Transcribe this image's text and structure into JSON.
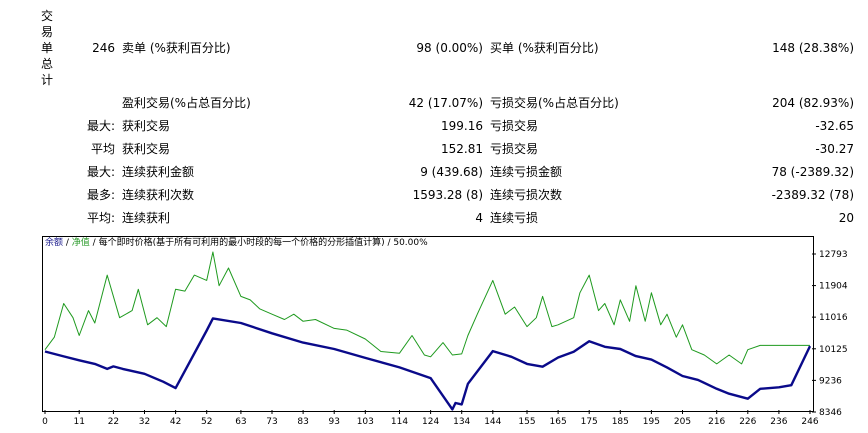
{
  "side_label": [
    "交",
    "易",
    "单",
    "总",
    "计"
  ],
  "rows": [
    {
      "prefix": "246",
      "label1": "卖单 (%获利百分比)",
      "value1": "98 (0.00%)",
      "label2": "买单 (%获利百分比)",
      "value2": "148 (28.38%)"
    },
    {
      "prefix": "",
      "label1": "盈利交易(%占总百分比)",
      "value1": "42 (17.07%)",
      "label2": "亏损交易(%占总百分比)",
      "value2": "204 (82.93%)"
    },
    {
      "prefix": "最大:",
      "label1": "获利交易",
      "value1": "199.16",
      "label2": "亏损交易",
      "value2": "-32.65"
    },
    {
      "prefix": "平均",
      "label1": "获利交易",
      "value1": "152.81",
      "label2": "亏损交易",
      "value2": "-30.27"
    },
    {
      "prefix": "最大:",
      "label1": "连续获利金额",
      "value1": "9 (439.68)",
      "label2": "连续亏损金额",
      "value2": "78 (-2389.32)"
    },
    {
      "prefix": "最多:",
      "label1": "连续获利次数",
      "value1": "1593.28 (8)",
      "label2": "连续亏损次数",
      "value2": "-2389.32 (78)"
    },
    {
      "prefix": "平均:",
      "label1": "连续获利",
      "value1": "4",
      "label2": "连续亏损",
      "value2": "20"
    }
  ],
  "legend": {
    "balance": "余额",
    "sep1": " / ",
    "equity": "净值",
    "sep2": " / ",
    "rest": "每个即时价格(基于所有可利用的最小时段的每一个价格的分形插值计算) / 50.00%"
  },
  "colors": {
    "balance": "#0a0a8a",
    "equity": "#1f9a1f"
  },
  "chart_data": {
    "type": "line",
    "ylim": [
      8346,
      13300
    ],
    "y_ticks": [
      12793,
      11904,
      11016,
      10125,
      9236,
      8346
    ],
    "x_ticks": [
      0,
      11,
      22,
      32,
      42,
      52,
      63,
      73,
      83,
      93,
      103,
      114,
      124,
      134,
      144,
      155,
      165,
      175,
      185,
      195,
      205,
      216,
      226,
      236,
      246
    ],
    "series": [
      {
        "name": "余额",
        "x": [
          0,
          6,
          11,
          16,
          20,
          22,
          25,
          32,
          38,
          42,
          52,
          54,
          63,
          73,
          83,
          93,
          103,
          114,
          124,
          131,
          132,
          134,
          136,
          144,
          150,
          155,
          160,
          165,
          170,
          175,
          180,
          185,
          190,
          195,
          200,
          205,
          210,
          216,
          220,
          226,
          230,
          236,
          240,
          246
        ],
        "y": [
          10050,
          9910,
          9800,
          9700,
          9560,
          9630,
          9560,
          9420,
          9200,
          9020,
          10640,
          10980,
          10850,
          10560,
          10300,
          10120,
          9870,
          9600,
          9300,
          8420,
          8600,
          8560,
          9140,
          10060,
          9900,
          9700,
          9620,
          9880,
          10040,
          10340,
          10180,
          10120,
          9920,
          9820,
          9600,
          9360,
          9250,
          9000,
          8860,
          8720,
          9000,
          9040,
          9100,
          10200
        ]
      },
      {
        "name": "净值",
        "x": [
          0,
          3,
          6,
          9,
          11,
          14,
          16,
          20,
          24,
          28,
          30,
          33,
          36,
          39,
          42,
          45,
          48,
          52,
          54,
          56,
          59,
          63,
          66,
          69,
          73,
          77,
          80,
          83,
          87,
          93,
          97,
          103,
          108,
          114,
          118,
          122,
          124,
          128,
          131,
          134,
          136,
          139,
          144,
          148,
          151,
          155,
          158,
          160,
          163,
          165,
          170,
          172,
          175,
          178,
          180,
          183,
          185,
          188,
          190,
          193,
          195,
          198,
          200,
          203,
          205,
          208,
          212,
          216,
          220,
          224,
          226,
          230,
          236,
          241,
          246
        ],
        "y": [
          10100,
          10450,
          11400,
          11000,
          10500,
          11200,
          10850,
          12200,
          11000,
          11200,
          11800,
          10800,
          11000,
          10750,
          11800,
          11750,
          12200,
          12050,
          12850,
          11900,
          12400,
          11600,
          11500,
          11250,
          11100,
          10950,
          11100,
          10900,
          10950,
          10700,
          10650,
          10400,
          10050,
          10000,
          10500,
          9950,
          9900,
          10300,
          9950,
          9980,
          10500,
          11100,
          12050,
          11100,
          11300,
          10750,
          11000,
          11600,
          10750,
          10800,
          11000,
          11700,
          12200,
          11200,
          11400,
          10800,
          11500,
          10900,
          11900,
          10900,
          11700,
          10800,
          11100,
          10450,
          10800,
          10100,
          9950,
          9700,
          9950,
          9700,
          10100,
          10220,
          10220,
          10220,
          10220
        ]
      }
    ]
  }
}
